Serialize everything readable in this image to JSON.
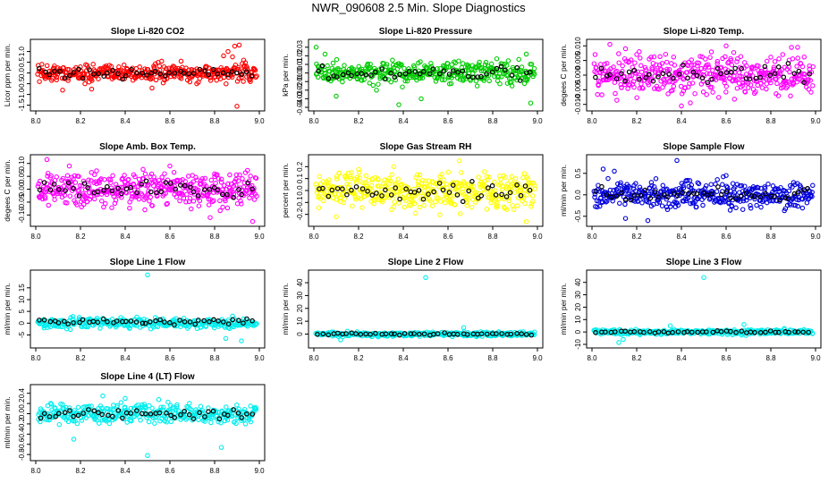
{
  "title": "NWR_090608  2.5 Min. Slope Diagnostics",
  "chart_data": [
    {
      "type": "scatter",
      "title": "Slope Li-820 CO2",
      "ylabel": "Licor ppm per min.",
      "color": "#ff0000",
      "xlim": [
        8.0,
        9.0
      ],
      "ylim": [
        -1.6,
        1.4
      ],
      "yticks": [
        "-1.5",
        "-1.0",
        "-0.5",
        "0.0",
        "0.5",
        "1.0"
      ],
      "xticks": [
        "8.0",
        "8.2",
        "8.4",
        "8.6",
        "8.8",
        "9.0"
      ],
      "spread": 0.28,
      "outliers": [
        [
          8.12,
          -0.8
        ],
        [
          8.22,
          -0.5
        ],
        [
          8.25,
          -0.75
        ],
        [
          8.52,
          -0.7
        ],
        [
          8.65,
          0.55
        ],
        [
          8.72,
          -0.5
        ],
        [
          8.84,
          0.8
        ],
        [
          8.86,
          1.0
        ],
        [
          8.88,
          0.75
        ],
        [
          8.89,
          1.25
        ],
        [
          8.91,
          1.3
        ],
        [
          8.93,
          0.6
        ],
        [
          8.9,
          -1.55
        ],
        [
          8.96,
          -0.4
        ]
      ],
      "series": [
        {
          "name": "all",
          "color": "#ff0000",
          "n": 380
        },
        {
          "name": "subset",
          "color": "#000000",
          "n": 45
        }
      ]
    },
    {
      "type": "scatter",
      "title": "Slope Li-820 Pressure",
      "ylabel": "kPa per min.",
      "color": "#00cc00",
      "xlim": [
        8.0,
        9.0
      ],
      "ylim": [
        -0.04,
        0.035
      ],
      "yticks": [
        "-0.04",
        "-0.03",
        "-0.02",
        "-0.01",
        "0.00",
        "0.01",
        "0.02",
        "0.03"
      ],
      "xticks": [
        "8.0",
        "8.2",
        "8.4",
        "8.6",
        "8.8",
        "9.0"
      ],
      "spread": 0.009,
      "outliers": [
        [
          8.01,
          0.03
        ],
        [
          8.05,
          0.022
        ],
        [
          8.1,
          -0.027
        ],
        [
          8.28,
          -0.02
        ],
        [
          8.38,
          -0.037
        ],
        [
          8.48,
          -0.03
        ],
        [
          8.97,
          -0.035
        ],
        [
          8.95,
          0.022
        ]
      ],
      "series": [
        {
          "name": "all",
          "color": "#00cc00",
          "n": 380
        },
        {
          "name": "subset",
          "color": "#000000",
          "n": 45
        }
      ]
    },
    {
      "type": "scatter",
      "title": "Slope Li-820 Temp.",
      "ylabel": "degees C per min.",
      "color": "#ff00ff",
      "xlim": [
        8.0,
        9.0
      ],
      "ylim": [
        -0.011,
        0.011
      ],
      "yticks": [
        "-0.010",
        "-0.005",
        "0.000",
        "0.005",
        "0.010"
      ],
      "xticks": [
        "8.0",
        "8.2",
        "8.4",
        "8.6",
        "8.8",
        "9.0"
      ],
      "spread": 0.0045,
      "outliers": [
        [
          8.08,
          0.0105
        ],
        [
          8.15,
          0.009
        ],
        [
          8.4,
          -0.0105
        ],
        [
          8.6,
          0.01
        ],
        [
          8.92,
          0.0095
        ]
      ],
      "series": [
        {
          "name": "all",
          "color": "#ff00ff",
          "n": 420
        },
        {
          "name": "subset",
          "color": "#000000",
          "n": 45
        }
      ]
    },
    {
      "type": "scatter",
      "title": "Slope Amb. Box Temp.",
      "ylabel": "degees C per min.",
      "color": "#ff00ff",
      "xlim": [
        8.0,
        9.0
      ],
      "ylim": [
        -0.13,
        0.12
      ],
      "yticks": [
        "-0.10",
        "-0.05",
        "0.00",
        "0.05",
        "0.10"
      ],
      "xticks": [
        "8.0",
        "8.2",
        "8.4",
        "8.6",
        "8.8",
        "9.0"
      ],
      "spread": 0.045,
      "outliers": [
        [
          8.05,
          0.115
        ],
        [
          8.15,
          0.09
        ],
        [
          8.78,
          -0.11
        ],
        [
          8.97,
          -0.125
        ],
        [
          8.6,
          0.09
        ]
      ],
      "series": [
        {
          "name": "all",
          "color": "#ff00ff",
          "n": 420
        },
        {
          "name": "subset",
          "color": "#000000",
          "n": 45
        }
      ]
    },
    {
      "type": "scatter",
      "title": "Slope Gas Stream RH",
      "ylabel": "percent per min.",
      "color": "#ffff00",
      "xlim": [
        8.0,
        9.0
      ],
      "ylim": [
        -0.27,
        0.27
      ],
      "yticks": [
        "-0.2",
        "-0.1",
        "0.0",
        "0.1",
        "0.2"
      ],
      "xticks": [
        "8.0",
        "8.2",
        "8.4",
        "8.6",
        "8.8",
        "9.0"
      ],
      "spread": 0.1,
      "outliers": [
        [
          8.65,
          0.25
        ],
        [
          8.1,
          -0.22
        ],
        [
          8.95,
          -0.26
        ]
      ],
      "series": [
        {
          "name": "all",
          "color": "#ffff00",
          "n": 420
        },
        {
          "name": "subset",
          "color": "#000000",
          "n": 45
        }
      ]
    },
    {
      "type": "scatter",
      "title": "Slope Sample Flow",
      "ylabel": "ml/min per min.",
      "color": "#0000dd",
      "xlim": [
        8.0,
        9.0
      ],
      "ylim": [
        -0.65,
        0.85
      ],
      "yticks": [
        "-0.5",
        "0.0",
        "0.5"
      ],
      "xticks": [
        "8.0",
        "8.2",
        "8.4",
        "8.6",
        "8.8",
        "9.0"
      ],
      "spread": 0.22,
      "outliers": [
        [
          8.38,
          0.8
        ],
        [
          8.1,
          0.55
        ],
        [
          8.05,
          0.6
        ],
        [
          8.15,
          -0.55
        ],
        [
          8.25,
          -0.6
        ],
        [
          8.6,
          0.45
        ]
      ],
      "series": [
        {
          "name": "all",
          "color": "#0000dd",
          "n": 420
        },
        {
          "name": "subset",
          "color": "#000000",
          "n": 45
        }
      ]
    },
    {
      "type": "scatter",
      "title": "Slope Line 1 Flow",
      "ylabel": "ml/min per min.",
      "color": "#00eeee",
      "xlim": [
        8.0,
        9.0
      ],
      "ylim": [
        -9,
        21
      ],
      "yticks": [
        "-5",
        "0",
        "5",
        "10",
        "15"
      ],
      "xticks": [
        "8.0",
        "8.2",
        "8.4",
        "8.6",
        "8.8",
        "9.0"
      ],
      "spread": 1.5,
      "outliers": [
        [
          8.5,
          20.5
        ],
        [
          8.88,
          3.0
        ],
        [
          8.85,
          -6.5
        ],
        [
          8.92,
          -7.5
        ]
      ],
      "series": [
        {
          "name": "all",
          "color": "#00eeee",
          "n": 340
        },
        {
          "name": "subset",
          "color": "#000000",
          "n": 45
        }
      ],
      "offset_black": 0.6
    },
    {
      "type": "scatter",
      "title": "Slope Line 2 Flow",
      "ylabel": "ml/min per min.",
      "color": "#00eeee",
      "xlim": [
        8.0,
        9.0
      ],
      "ylim": [
        -8,
        47
      ],
      "yticks": [
        "0",
        "10",
        "20",
        "30",
        "40"
      ],
      "xticks": [
        "8.0",
        "8.2",
        "8.4",
        "8.6",
        "8.8",
        "9.0"
      ],
      "spread": 1.2,
      "outliers": [
        [
          8.5,
          44
        ],
        [
          8.12,
          -4.5
        ],
        [
          8.67,
          5
        ]
      ],
      "series": [
        {
          "name": "all",
          "color": "#00eeee",
          "n": 340
        },
        {
          "name": "subset",
          "color": "#000000",
          "n": 45
        }
      ]
    },
    {
      "type": "scatter",
      "title": "Slope Line 3 Flow",
      "ylabel": "ml/min per min.",
      "color": "#00eeee",
      "xlim": [
        8.0,
        9.0
      ],
      "ylim": [
        -10,
        47
      ],
      "yticks": [
        "-10",
        "0",
        "10",
        "20",
        "30",
        "40"
      ],
      "xticks": [
        "8.0",
        "8.2",
        "8.4",
        "8.6",
        "8.8",
        "9.0"
      ],
      "spread": 1.4,
      "outliers": [
        [
          8.5,
          44
        ],
        [
          8.12,
          -8.5
        ],
        [
          8.14,
          -6
        ],
        [
          8.35,
          5
        ],
        [
          8.68,
          6
        ]
      ],
      "series": [
        {
          "name": "all",
          "color": "#00eeee",
          "n": 340
        },
        {
          "name": "subset",
          "color": "#000000",
          "n": 45
        }
      ]
    },
    {
      "type": "scatter",
      "title": "Slope Line 4 (LT) Flow",
      "ylabel": "ml/min per min.",
      "color": "#00eeee",
      "xlim": [
        8.0,
        9.0
      ],
      "ylim": [
        -0.85,
        0.5
      ],
      "yticks": [
        "-0.8",
        "-0.6",
        "-0.4",
        "-0.2",
        "0.0",
        "0.2",
        "0.4"
      ],
      "xticks": [
        "8.0",
        "8.2",
        "8.4",
        "8.6",
        "8.8",
        "9.0"
      ],
      "spread": 0.13,
      "outliers": [
        [
          8.5,
          -0.82
        ],
        [
          8.83,
          -0.66
        ],
        [
          8.17,
          -0.5
        ],
        [
          8.4,
          0.3
        ],
        [
          8.3,
          0.35
        ]
      ],
      "series": [
        {
          "name": "all",
          "color": "#00eeee",
          "n": 360
        },
        {
          "name": "subset",
          "color": "#000000",
          "n": 45
        }
      ]
    }
  ]
}
